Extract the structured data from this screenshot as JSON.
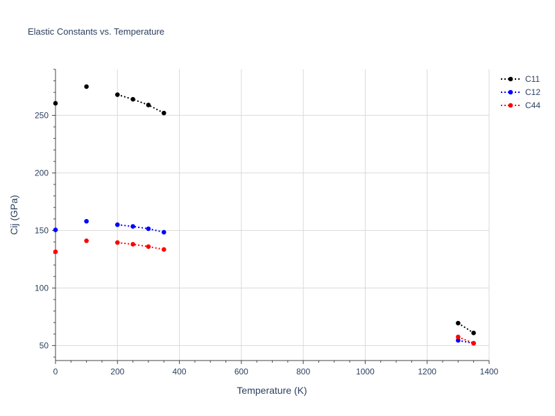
{
  "chart_data": {
    "type": "line",
    "title": "Elastic Constants vs. Temperature",
    "xlabel": "Temperature (K)",
    "ylabel": "Cij (GPa)",
    "xlim": [
      0,
      1400
    ],
    "ylim": [
      37,
      290
    ],
    "xticks": [
      0,
      200,
      400,
      600,
      800,
      1000,
      1200,
      1400
    ],
    "yticks": [
      50,
      100,
      150,
      200,
      250
    ],
    "grid": true,
    "legend_position": "top-right",
    "series": [
      {
        "name": "C11",
        "color": "#000000",
        "segments": [
          {
            "x": [
              0
            ],
            "y": [
              260.5
            ]
          },
          {
            "x": [
              100
            ],
            "y": [
              275
            ]
          },
          {
            "x": [
              200,
              250,
              300,
              350
            ],
            "y": [
              268,
              264,
              259,
              252
            ]
          },
          {
            "x": [
              1300,
              1350
            ],
            "y": [
              69.5,
              61
            ]
          }
        ]
      },
      {
        "name": "C12",
        "color": "#0000ff",
        "segments": [
          {
            "x": [
              0
            ],
            "y": [
              150.5
            ]
          },
          {
            "x": [
              100
            ],
            "y": [
              158
            ]
          },
          {
            "x": [
              200,
              250,
              300,
              350
            ],
            "y": [
              155,
              153.5,
              151.5,
              148.5
            ]
          },
          {
            "x": [
              1300,
              1350
            ],
            "y": [
              54.5,
              52
            ]
          }
        ]
      },
      {
        "name": "C44",
        "color": "#ff0000",
        "segments": [
          {
            "x": [
              0
            ],
            "y": [
              131.5
            ]
          },
          {
            "x": [
              100
            ],
            "y": [
              141
            ]
          },
          {
            "x": [
              200,
              250,
              300,
              350
            ],
            "y": [
              139.5,
              138,
              136,
              133.5
            ]
          },
          {
            "x": [
              1300,
              1350
            ],
            "y": [
              57.5,
              52
            ]
          }
        ]
      }
    ]
  }
}
